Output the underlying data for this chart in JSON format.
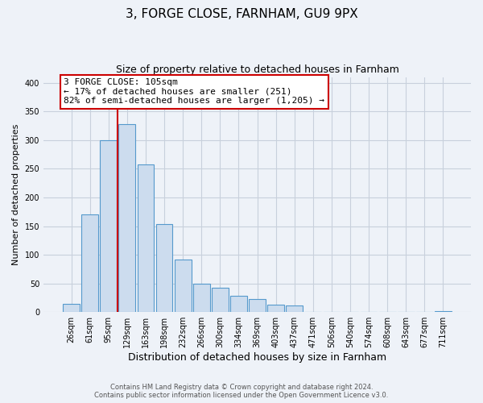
{
  "title": "3, FORGE CLOSE, FARNHAM, GU9 9PX",
  "subtitle": "Size of property relative to detached houses in Farnham",
  "xlabel": "Distribution of detached houses by size in Farnham",
  "ylabel": "Number of detached properties",
  "bar_labels": [
    "26sqm",
    "61sqm",
    "95sqm",
    "129sqm",
    "163sqm",
    "198sqm",
    "232sqm",
    "266sqm",
    "300sqm",
    "334sqm",
    "369sqm",
    "403sqm",
    "437sqm",
    "471sqm",
    "506sqm",
    "540sqm",
    "574sqm",
    "608sqm",
    "643sqm",
    "677sqm",
    "711sqm"
  ],
  "bar_values": [
    15,
    170,
    300,
    328,
    258,
    153,
    92,
    50,
    42,
    29,
    23,
    13,
    11,
    0,
    0,
    0,
    0,
    0,
    0,
    0,
    2
  ],
  "bar_color": "#ccdcee",
  "bar_edge_color": "#5599cc",
  "marker_line_color": "#cc0000",
  "annotation_line1": "3 FORGE CLOSE: 105sqm",
  "annotation_line2": "← 17% of detached houses are smaller (251)",
  "annotation_line3": "82% of semi-detached houses are larger (1,205) →",
  "annotation_box_color": "#ffffff",
  "annotation_box_edge": "#cc0000",
  "ylim": [
    0,
    410
  ],
  "yticks": [
    0,
    50,
    100,
    150,
    200,
    250,
    300,
    350,
    400
  ],
  "footer_line1": "Contains HM Land Registry data © Crown copyright and database right 2024.",
  "footer_line2": "Contains public sector information licensed under the Open Government Licence v3.0.",
  "bg_color": "#eef2f8",
  "plot_bg_color": "#eef2f8",
  "grid_color": "#c8d0dc"
}
